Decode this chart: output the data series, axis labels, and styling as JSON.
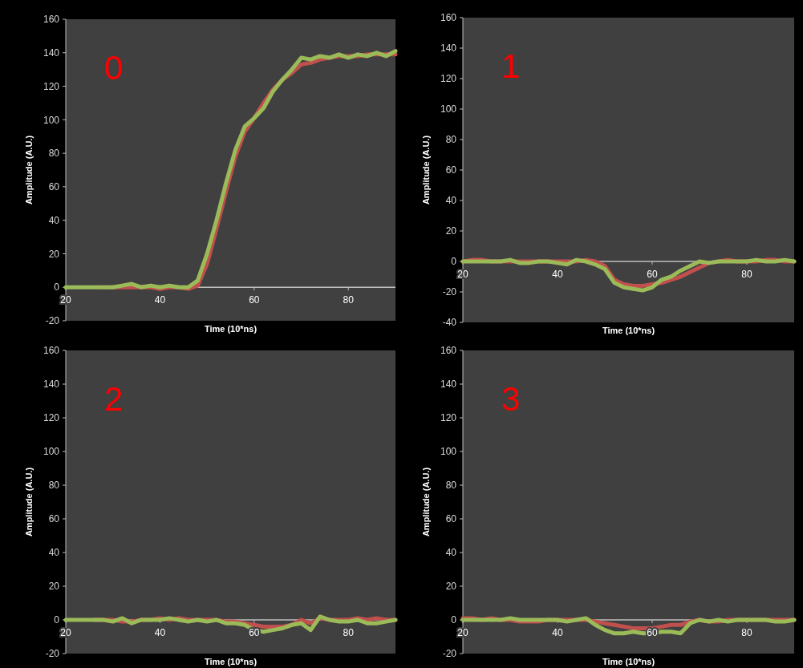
{
  "chart_data": [
    {
      "type": "line",
      "title": "0",
      "xlabel": "Time (10*ns)",
      "ylabel": "Amplitude (A.U.)",
      "xlim": [
        20,
        90
      ],
      "ylim": [
        -20,
        160
      ],
      "xticks": [
        20,
        40,
        60,
        80
      ],
      "yticks": [
        -20,
        0,
        20,
        40,
        60,
        80,
        100,
        120,
        140,
        160
      ],
      "grid": false,
      "x": [
        20,
        22,
        24,
        26,
        28,
        30,
        32,
        34,
        36,
        38,
        40,
        42,
        44,
        46,
        48,
        50,
        52,
        54,
        56,
        58,
        60,
        62,
        64,
        66,
        68,
        70,
        72,
        74,
        76,
        78,
        80,
        82,
        84,
        86,
        88,
        90
      ],
      "series": [
        {
          "color": "#c0504d",
          "values": [
            null,
            null,
            null,
            null,
            0,
            0,
            0,
            0,
            0,
            0,
            -1,
            0,
            0,
            -1,
            1,
            14,
            35,
            57,
            78,
            93,
            101,
            110,
            118,
            124,
            128,
            133,
            134,
            136,
            137,
            138,
            138,
            138,
            139,
            139,
            139,
            139
          ]
        },
        {
          "color": "#9bbb59",
          "values": [
            0,
            0,
            0,
            0,
            0,
            0,
            1,
            2,
            0,
            1,
            0,
            1,
            0,
            0,
            4,
            20,
            40,
            62,
            82,
            96,
            101,
            107,
            117,
            124,
            130,
            137,
            136,
            138,
            137,
            139,
            137,
            139,
            138,
            140,
            138,
            141
          ]
        }
      ]
    },
    {
      "type": "line",
      "title": "1",
      "xlabel": "Time (10*ns)",
      "ylabel": "Amplitude (A.U.)",
      "xlim": [
        20,
        90
      ],
      "ylim": [
        -40,
        160
      ],
      "xticks": [
        20,
        40,
        60,
        80
      ],
      "yticks": [
        -40,
        -20,
        0,
        20,
        40,
        60,
        80,
        100,
        120,
        140,
        160
      ],
      "grid": false,
      "x": [
        20,
        22,
        24,
        26,
        28,
        30,
        32,
        34,
        36,
        38,
        40,
        42,
        44,
        46,
        48,
        50,
        52,
        54,
        56,
        58,
        60,
        62,
        64,
        66,
        68,
        70,
        72,
        74,
        76,
        78,
        80,
        82,
        84,
        86,
        88,
        90
      ],
      "series": [
        {
          "color": "#c0504d",
          "values": [
            0,
            1,
            1,
            0,
            0,
            0,
            0,
            0,
            0,
            0,
            0,
            0,
            0,
            1,
            0,
            -3,
            -12,
            -15,
            -16,
            -16,
            -15,
            -14,
            -12,
            -10,
            -7,
            -4,
            -1,
            0,
            1,
            0,
            0,
            0,
            1,
            1,
            0,
            0
          ]
        },
        {
          "color": "#9bbb59",
          "values": [
            0,
            0,
            0,
            0,
            0,
            1,
            -1,
            -1,
            0,
            0,
            -1,
            -2,
            1,
            0,
            -2,
            -5,
            -14,
            -17,
            -18,
            -19,
            -17,
            -12,
            -10,
            -6,
            -3,
            0,
            -1,
            0,
            0,
            0,
            0,
            1,
            0,
            0,
            1,
            0
          ]
        }
      ]
    },
    {
      "type": "line",
      "title": "2",
      "xlabel": "Time (10*ns)",
      "ylabel": "Amplitude (A.U.)",
      "xlim": [
        20,
        90
      ],
      "ylim": [
        -20,
        160
      ],
      "xticks": [
        20,
        40,
        60,
        80
      ],
      "yticks": [
        -20,
        0,
        20,
        40,
        60,
        80,
        100,
        120,
        140,
        160
      ],
      "grid": false,
      "x": [
        20,
        22,
        24,
        26,
        28,
        30,
        32,
        34,
        36,
        38,
        40,
        42,
        44,
        46,
        48,
        50,
        52,
        54,
        56,
        58,
        60,
        62,
        64,
        66,
        68,
        70,
        72,
        74,
        76,
        78,
        80,
        82,
        84,
        86,
        88,
        90
      ],
      "series": [
        {
          "color": "#c0504d",
          "values": [
            null,
            null,
            null,
            0,
            0,
            0,
            -1,
            -1,
            0,
            0,
            1,
            0,
            1,
            0,
            0,
            0,
            0,
            -1,
            -1,
            -2,
            -3,
            -4,
            -4,
            -4,
            -3,
            0,
            -2,
            1,
            0,
            0,
            0,
            1,
            0,
            1,
            0,
            0
          ]
        },
        {
          "color": "#9bbb59",
          "values": [
            0,
            0,
            0,
            0,
            0,
            -1,
            1,
            -2,
            0,
            0,
            0,
            1,
            0,
            -1,
            0,
            -1,
            0,
            -2,
            -2,
            -3,
            -6,
            -7,
            -6,
            -5,
            -3,
            -2,
            -6,
            2,
            0,
            -1,
            -1,
            0,
            -2,
            -2,
            -1,
            0
          ]
        }
      ]
    },
    {
      "type": "line",
      "title": "3",
      "xlabel": "Time (10*ns)",
      "ylabel": "Amplitude (A.U.)",
      "xlim": [
        20,
        90
      ],
      "ylim": [
        -20,
        160
      ],
      "xticks": [
        20,
        40,
        60,
        80
      ],
      "yticks": [
        -20,
        0,
        20,
        40,
        60,
        80,
        100,
        120,
        140,
        160
      ],
      "grid": false,
      "x": [
        20,
        22,
        24,
        26,
        28,
        30,
        32,
        34,
        36,
        38,
        40,
        42,
        44,
        46,
        48,
        50,
        52,
        54,
        56,
        58,
        60,
        62,
        64,
        66,
        68,
        70,
        72,
        74,
        76,
        78,
        80,
        82,
        84,
        86,
        88,
        90
      ],
      "series": [
        {
          "color": "#c0504d",
          "values": [
            1,
            1,
            0,
            1,
            0,
            0,
            -1,
            -1,
            -1,
            0,
            0,
            0,
            0,
            0,
            -1,
            -2,
            -3,
            -4,
            -5,
            -5,
            -5,
            -4,
            -3,
            -3,
            -1,
            0,
            -1,
            -1,
            0,
            0,
            0,
            0,
            0,
            0,
            0,
            0
          ]
        },
        {
          "color": "#9bbb59",
          "values": [
            0,
            0,
            0,
            0,
            0,
            1,
            0,
            0,
            0,
            0,
            0,
            -1,
            0,
            1,
            -3,
            -6,
            -8,
            -8,
            -7,
            -8,
            -8,
            -7,
            -7,
            -8,
            -2,
            0,
            -1,
            0,
            -1,
            0,
            0,
            0,
            0,
            -1,
            -1,
            0
          ]
        }
      ]
    }
  ]
}
